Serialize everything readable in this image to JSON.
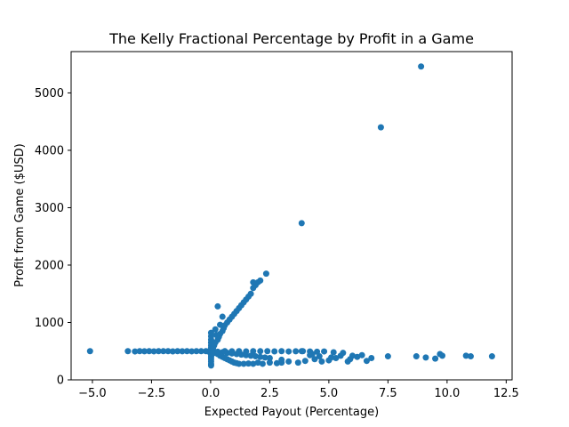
{
  "chart_data": {
    "type": "scatter",
    "title": "The Kelly Fractional Percentage by Profit in a Game",
    "xlabel": "Expected Payout (Percentage)",
    "ylabel": "Profit from Game ($USD)",
    "xlim": [
      -5.9,
      12.75
    ],
    "ylim": [
      0,
      5720
    ],
    "x_ticks": [
      -5.0,
      -2.5,
      0.0,
      2.5,
      5.0,
      7.5,
      10.0,
      12.5
    ],
    "x_tick_labels": [
      "−5.0",
      "−2.5",
      "0.0",
      "2.5",
      "5.0",
      "7.5",
      "10.0",
      "12.5"
    ],
    "y_ticks": [
      0,
      1000,
      2000,
      3000,
      4000,
      5000
    ],
    "y_tick_labels": [
      "0",
      "1000",
      "2000",
      "3000",
      "4000",
      "5000"
    ],
    "grid": false,
    "legend": false,
    "color": "#1f77b4",
    "points": [
      [
        -5.1,
        500
      ],
      [
        -3.5,
        500
      ],
      [
        -3.2,
        495
      ],
      [
        -3.0,
        500
      ],
      [
        -2.8,
        498
      ],
      [
        -2.6,
        500
      ],
      [
        -2.4,
        497
      ],
      [
        -2.2,
        500
      ],
      [
        -2.0,
        499
      ],
      [
        -1.8,
        500
      ],
      [
        -1.6,
        496
      ],
      [
        -1.4,
        500
      ],
      [
        -1.2,
        498
      ],
      [
        -1.0,
        500
      ],
      [
        -0.8,
        497
      ],
      [
        -0.6,
        500
      ],
      [
        -0.4,
        499
      ],
      [
        -0.2,
        500
      ],
      [
        -0.1,
        495
      ],
      [
        0.02,
        480
      ],
      [
        0.02,
        440
      ],
      [
        0.02,
        400
      ],
      [
        0.02,
        360
      ],
      [
        0.02,
        320
      ],
      [
        0.02,
        280
      ],
      [
        0.02,
        250
      ],
      [
        0.02,
        520
      ],
      [
        0.02,
        560
      ],
      [
        0.02,
        600
      ],
      [
        0.02,
        650
      ],
      [
        0.02,
        700
      ],
      [
        0.02,
        760
      ],
      [
        0.02,
        820
      ],
      [
        0.1,
        500
      ],
      [
        0.2,
        470
      ],
      [
        0.3,
        450
      ],
      [
        0.4,
        420
      ],
      [
        0.5,
        400
      ],
      [
        0.6,
        380
      ],
      [
        0.7,
        360
      ],
      [
        0.8,
        340
      ],
      [
        0.9,
        320
      ],
      [
        1.0,
        300
      ],
      [
        1.1,
        290
      ],
      [
        1.2,
        280
      ],
      [
        1.4,
        280
      ],
      [
        1.6,
        285
      ],
      [
        1.8,
        280
      ],
      [
        2.0,
        300
      ],
      [
        2.2,
        280
      ],
      [
        2.5,
        300
      ],
      [
        2.8,
        290
      ],
      [
        3.0,
        300
      ],
      [
        0.1,
        460
      ],
      [
        0.3,
        490
      ],
      [
        0.5,
        480
      ],
      [
        0.7,
        470
      ],
      [
        0.9,
        460
      ],
      [
        1.1,
        450
      ],
      [
        1.3,
        440
      ],
      [
        1.5,
        430
      ],
      [
        1.7,
        420
      ],
      [
        1.9,
        410
      ],
      [
        2.1,
        400
      ],
      [
        2.3,
        390
      ],
      [
        2.5,
        380
      ],
      [
        0.6,
        500
      ],
      [
        0.9,
        498
      ],
      [
        1.2,
        500
      ],
      [
        1.5,
        497
      ],
      [
        1.8,
        500
      ],
      [
        2.1,
        499
      ],
      [
        2.4,
        500
      ],
      [
        2.7,
        496
      ],
      [
        3.0,
        500
      ],
      [
        3.3,
        495
      ],
      [
        3.6,
        498
      ],
      [
        3.9,
        500
      ],
      [
        4.2,
        494
      ],
      [
        4.5,
        490
      ],
      [
        4.8,
        495
      ],
      [
        5.2,
        480
      ],
      [
        5.6,
        470
      ],
      [
        6.0,
        420
      ],
      [
        6.4,
        430
      ],
      [
        6.8,
        380
      ],
      [
        7.5,
        410
      ],
      [
        8.7,
        410
      ],
      [
        9.1,
        390
      ],
      [
        9.5,
        370
      ],
      [
        9.7,
        450
      ],
      [
        9.8,
        420
      ],
      [
        10.8,
        420
      ],
      [
        11.0,
        410
      ],
      [
        11.9,
        410
      ],
      [
        3.0,
        350
      ],
      [
        3.3,
        320
      ],
      [
        3.7,
        300
      ],
      [
        4.0,
        330
      ],
      [
        4.4,
        360
      ],
      [
        4.7,
        320
      ],
      [
        5.0,
        340
      ],
      [
        5.3,
        380
      ],
      [
        5.8,
        320
      ],
      [
        6.2,
        400
      ],
      [
        6.6,
        330
      ],
      [
        4.2,
        430
      ],
      [
        4.6,
        410
      ],
      [
        5.1,
        390
      ],
      [
        5.5,
        420
      ],
      [
        5.9,
        360
      ],
      [
        3.85,
        500
      ],
      [
        4.3,
        450
      ],
      [
        0.1,
        550
      ],
      [
        0.15,
        600
      ],
      [
        0.2,
        650
      ],
      [
        0.3,
        700
      ],
      [
        0.35,
        750
      ],
      [
        0.4,
        800
      ],
      [
        0.5,
        850
      ],
      [
        0.55,
        900
      ],
      [
        0.6,
        950
      ],
      [
        0.7,
        1000
      ],
      [
        0.8,
        1050
      ],
      [
        0.9,
        1100
      ],
      [
        1.0,
        1150
      ],
      [
        1.1,
        1200
      ],
      [
        1.2,
        1250
      ],
      [
        1.3,
        1300
      ],
      [
        1.4,
        1350
      ],
      [
        1.5,
        1400
      ],
      [
        1.6,
        1450
      ],
      [
        1.7,
        1500
      ],
      [
        1.8,
        1600
      ],
      [
        1.9,
        1650
      ],
      [
        2.0,
        1700
      ],
      [
        2.1,
        1730
      ],
      [
        2.35,
        1850
      ],
      [
        1.8,
        1700
      ],
      [
        0.3,
        1280
      ],
      [
        0.5,
        1100
      ],
      [
        0.4,
        960
      ],
      [
        0.2,
        880
      ],
      [
        0.25,
        780
      ],
      [
        3.85,
        2730
      ],
      [
        7.2,
        4400
      ],
      [
        8.9,
        5460
      ]
    ]
  }
}
